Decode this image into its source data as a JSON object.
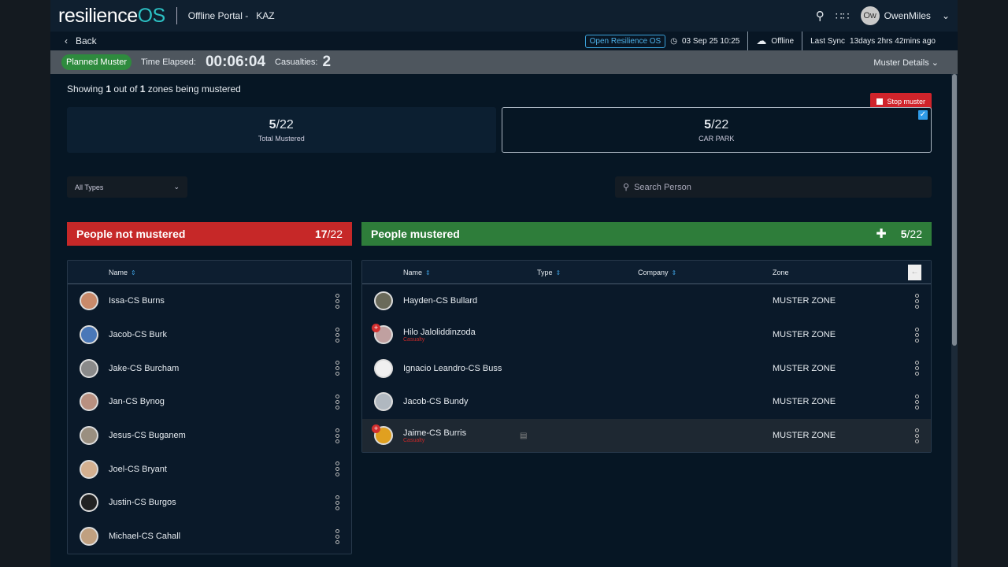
{
  "header": {
    "logo_a": "resilience",
    "logo_b": "OS",
    "portal": "Offline Portal  -",
    "site": "KAZ",
    "user_initials": "Ow",
    "user_name": "OwenMiles"
  },
  "subheader": {
    "back": "Back",
    "open_os": "Open Resilience OS",
    "datetime": "03 Sep 25 10:25",
    "status": "Offline",
    "last_sync_label": "Last Sync",
    "last_sync": "13days 2hrs 42mins ago"
  },
  "muster_bar": {
    "type": "Planned Muster",
    "elapsed_label": "Time Elapsed:",
    "elapsed": "00:06:04",
    "casualties_label": "Casualties:",
    "casualties": "2",
    "details": "Muster Details"
  },
  "showing": {
    "pre": "Showing ",
    "a": "1",
    "mid": " out of ",
    "b": "1",
    "post": " zones being mustered"
  },
  "stop_label": "Stop muster",
  "cards": [
    {
      "count": "5",
      "total": "/22",
      "label": "Total Mustered"
    },
    {
      "count": "5",
      "total": "/22",
      "label": "CAR PARK"
    }
  ],
  "filter": {
    "type": "All Types",
    "search_placeholder": "Search Person"
  },
  "not_mustered": {
    "title": "People not mustered",
    "count": "17",
    "total": "/22",
    "col_name": "Name",
    "people": [
      "Issa-CS Burns",
      "Jacob-CS Burk",
      "Jake-CS Burcham",
      "Jan-CS Bynog",
      "Jesus-CS Buganem",
      "Joel-CS Bryant",
      "Justin-CS Burgos",
      "Michael-CS Cahall"
    ]
  },
  "mustered": {
    "title": "People mustered",
    "count": "5",
    "total": "/22",
    "cols": {
      "name": "Name",
      "type": "Type",
      "company": "Company",
      "zone": "Zone"
    },
    "people": [
      {
        "name": "Hayden-CS Bullard",
        "zone": "MUSTER ZONE",
        "casualty": ""
      },
      {
        "name": "Hilo Jaloliddinzoda",
        "zone": "MUSTER ZONE",
        "casualty": "Casualty"
      },
      {
        "name": "Ignacio Leandro-CS Buss",
        "zone": "MUSTER ZONE",
        "casualty": ""
      },
      {
        "name": "Jacob-CS Bundy",
        "zone": "MUSTER ZONE",
        "casualty": ""
      },
      {
        "name": "Jaime-CS Burris",
        "zone": "MUSTER ZONE",
        "casualty": "Casualty"
      }
    ]
  }
}
